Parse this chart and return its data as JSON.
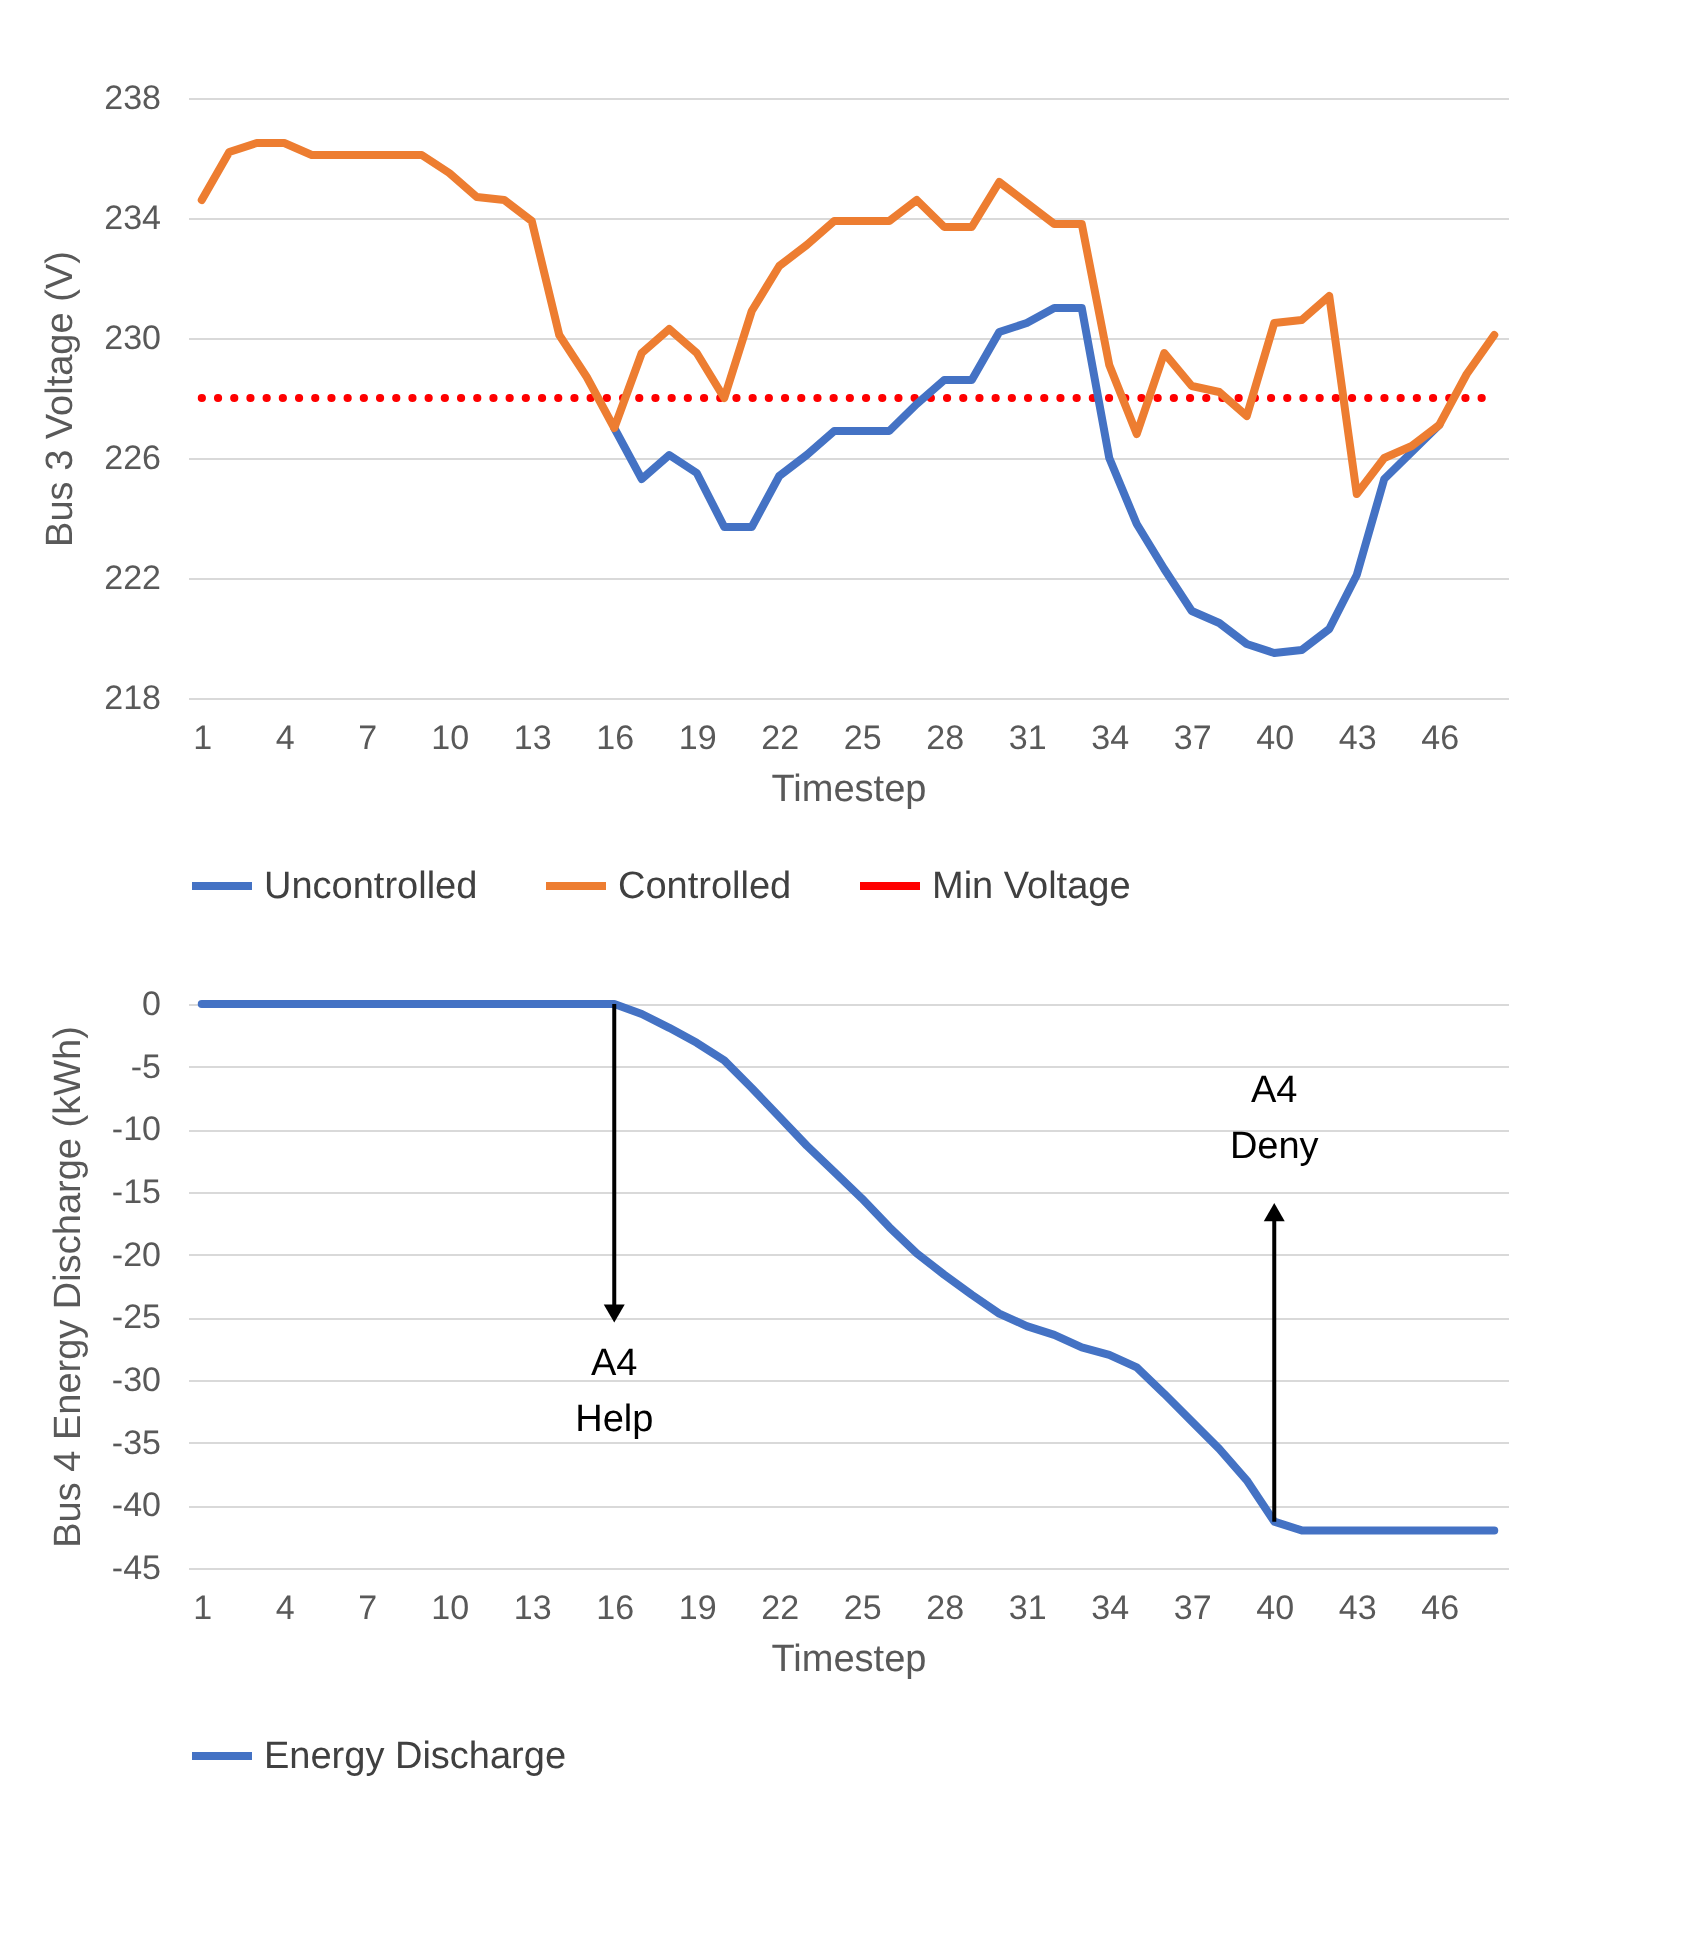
{
  "chart_data": [
    {
      "type": "line",
      "xlabel": "Timestep",
      "ylabel": "Bus 3 Voltage (V)",
      "categories": [
        "1",
        null,
        null,
        "4",
        null,
        null,
        "7",
        null,
        null,
        "10",
        null,
        null,
        "13",
        null,
        null,
        "16",
        null,
        null,
        "19",
        null,
        null,
        "22",
        null,
        null,
        "25",
        null,
        null,
        "28",
        null,
        null,
        "31",
        null,
        null,
        "34",
        null,
        null,
        "37",
        null,
        null,
        "40",
        null,
        null,
        "43",
        null,
        null,
        "46",
        null,
        null
      ],
      "ylim": [
        218,
        238
      ],
      "yticks": [
        218,
        222,
        226,
        230,
        234,
        238
      ],
      "grid": "y",
      "legend": "bottom",
      "series": [
        {
          "name": "Uncontrolled",
          "color": "#4472c4",
          "line_style": "solid",
          "values": [
            null,
            null,
            null,
            null,
            null,
            null,
            null,
            null,
            null,
            null,
            null,
            null,
            null,
            null,
            null,
            227.0,
            225.3,
            226.1,
            225.5,
            223.7,
            223.7,
            225.4,
            226.1,
            226.9,
            226.9,
            226.9,
            227.8,
            228.6,
            228.6,
            230.2,
            230.5,
            231.0,
            231.0,
            226.0,
            223.8,
            222.3,
            220.9,
            220.5,
            219.8,
            219.5,
            219.6,
            220.3,
            222.1,
            225.3,
            226.2,
            227.1,
            null,
            null
          ]
        },
        {
          "name": "Controlled",
          "color": "#ed7d31",
          "line_style": "solid",
          "values": [
            234.6,
            236.2,
            236.5,
            236.5,
            236.1,
            236.1,
            236.1,
            236.1,
            236.1,
            235.5,
            234.7,
            234.6,
            233.9,
            230.1,
            228.7,
            227.0,
            229.5,
            230.3,
            229.5,
            228.0,
            230.9,
            232.4,
            233.1,
            233.9,
            233.9,
            233.9,
            234.6,
            233.7,
            233.7,
            235.2,
            234.5,
            233.8,
            233.8,
            229.1,
            226.8,
            229.5,
            228.4,
            228.2,
            227.4,
            230.5,
            230.6,
            231.4,
            224.8,
            226.0,
            226.4,
            227.1,
            228.8,
            230.1
          ]
        },
        {
          "name": "Min Voltage",
          "color": "#ff0000",
          "line_style": "dotted",
          "values": [
            228,
            228,
            228,
            228,
            228,
            228,
            228,
            228,
            228,
            228,
            228,
            228,
            228,
            228,
            228,
            228,
            228,
            228,
            228,
            228,
            228,
            228,
            228,
            228,
            228,
            228,
            228,
            228,
            228,
            228,
            228,
            228,
            228,
            228,
            228,
            228,
            228,
            228,
            228,
            228,
            228,
            228,
            228,
            228,
            228,
            228,
            228,
            228
          ]
        }
      ]
    },
    {
      "type": "line",
      "xlabel": "Timestep",
      "ylabel": "Bus 4 Energy Discharge (kWh)",
      "categories": [
        "1",
        null,
        null,
        "4",
        null,
        null,
        "7",
        null,
        null,
        "10",
        null,
        null,
        "13",
        null,
        null,
        "16",
        null,
        null,
        "19",
        null,
        null,
        "22",
        null,
        null,
        "25",
        null,
        null,
        "28",
        null,
        null,
        "31",
        null,
        null,
        "34",
        null,
        null,
        "37",
        null,
        null,
        "40",
        null,
        null,
        "43",
        null,
        null,
        "46",
        null,
        null
      ],
      "ylim": [
        -45,
        0
      ],
      "yticks": [
        -45,
        -40,
        -35,
        -30,
        -25,
        -20,
        -15,
        -10,
        -5,
        0
      ],
      "grid": "y",
      "legend": "bottom",
      "series": [
        {
          "name": "Energy Discharge",
          "color": "#4472c4",
          "line_style": "solid",
          "values": [
            0,
            0,
            0,
            0,
            0,
            0,
            0,
            0,
            0,
            0,
            0,
            0,
            0,
            0,
            0,
            0,
            -0.8,
            -1.9,
            -3.1,
            -4.5,
            -6.7,
            -9.0,
            -11.3,
            -13.4,
            -15.5,
            -17.8,
            -19.9,
            -21.6,
            -23.2,
            -24.7,
            -25.7,
            -26.4,
            -27.4,
            -28.0,
            -29.0,
            -31.1,
            -33.3,
            -35.5,
            -38.0,
            -41.3,
            -42,
            -42,
            -42,
            -42,
            -42,
            -42,
            -42,
            -42
          ]
        }
      ],
      "annotations": [
        {
          "text": "A4\nHelp",
          "x": "16",
          "y": 0
        },
        {
          "text": "A4\nDeny",
          "x": "40",
          "y": -41.3
        }
      ]
    }
  ]
}
